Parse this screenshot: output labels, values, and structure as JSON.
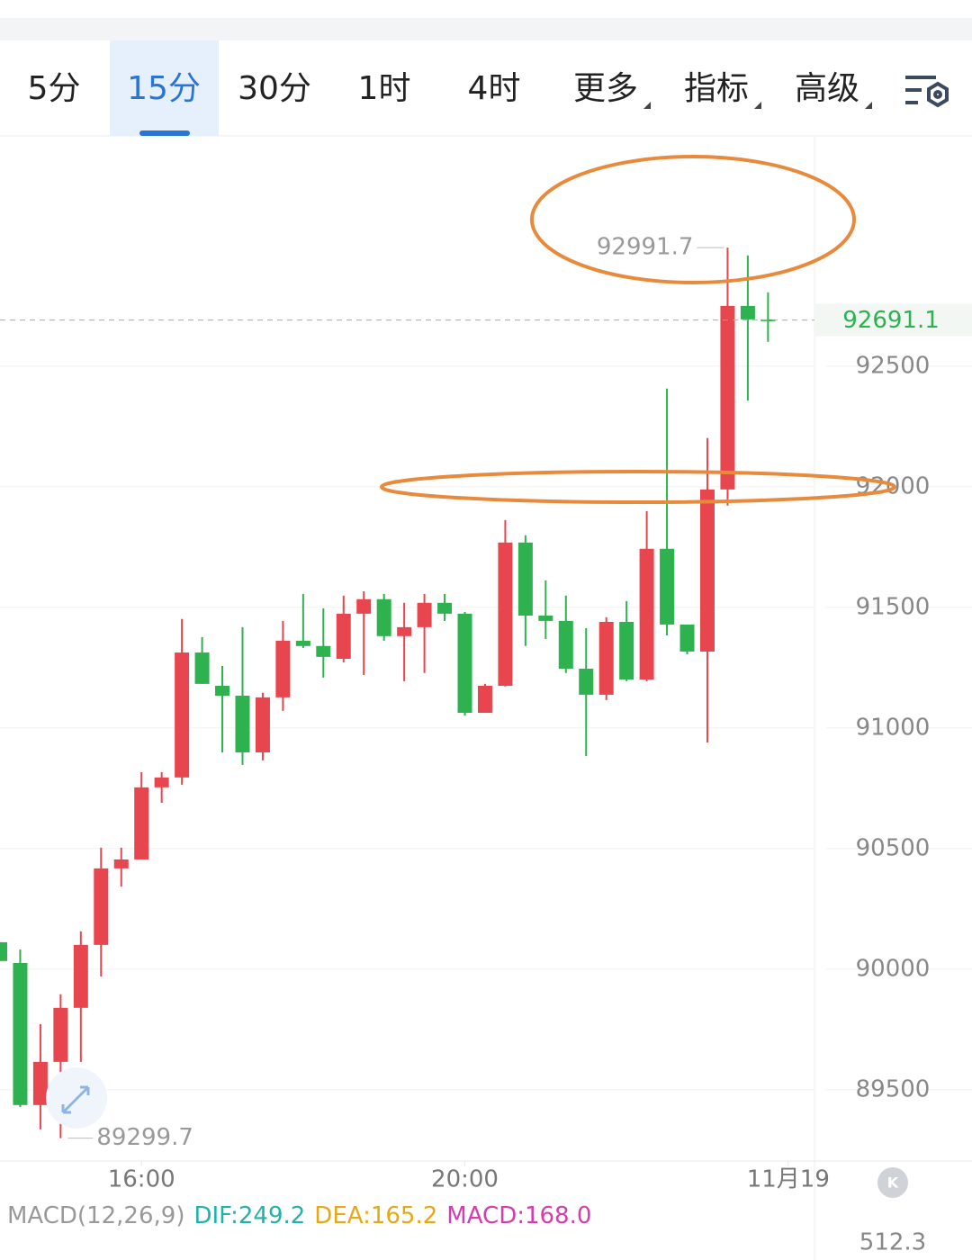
{
  "tabs": [
    "5分",
    "15分",
    "30分",
    "1时",
    "4时",
    "更多",
    "指标",
    "高级"
  ],
  "selected_tab": 1,
  "dropdown_tabs": [
    5,
    6,
    7
  ],
  "chart_data": {
    "type": "candlestick",
    "up_color": "#e8464f",
    "down_color": "#2db24f",
    "ylim": [
      89205,
      93451
    ],
    "yticks": [
      89500,
      90000,
      90500,
      91000,
      91500,
      92000,
      92500
    ],
    "xlim": [
      0,
      40.3
    ],
    "xticks": [
      {
        "value": 7,
        "label": "16:00"
      },
      {
        "value": 23,
        "label": "20:00"
      },
      {
        "value": 39,
        "label": "11月19"
      }
    ],
    "grid": true,
    "ohlc": [
      [
        90112,
        90112,
        90034,
        90034
      ],
      [
        90026,
        90082,
        89429,
        89437
      ],
      [
        89437,
        89772,
        89336,
        89616
      ],
      [
        89616,
        89896,
        89299.7,
        89840
      ],
      [
        89840,
        90157,
        89616,
        90101
      ],
      [
        90101,
        90504,
        89970,
        90418
      ],
      [
        90418,
        90504,
        90343,
        90455
      ],
      [
        90455,
        90817,
        90455,
        90754
      ],
      [
        90754,
        90817,
        90690,
        90795
      ],
      [
        90795,
        91452,
        90765,
        91313
      ],
      [
        91313,
        91377,
        91183,
        91183
      ],
      [
        91175,
        91257,
        90899,
        91134
      ],
      [
        91134,
        91418,
        90847,
        90899
      ],
      [
        90899,
        91146,
        90866,
        91127
      ],
      [
        91127,
        91444,
        91071,
        91362
      ],
      [
        91362,
        91556,
        91332,
        91340
      ],
      [
        91340,
        91496,
        91209,
        91295
      ],
      [
        91287,
        91549,
        91272,
        91474
      ],
      [
        91474,
        91567,
        91220,
        91534
      ],
      [
        91534,
        91556,
        91362,
        91381
      ],
      [
        91381,
        91519,
        91194,
        91418
      ],
      [
        91418,
        91556,
        91228,
        91519
      ],
      [
        91519,
        91556,
        91444,
        91474
      ],
      [
        91474,
        91481,
        91052,
        91063
      ],
      [
        91063,
        91183,
        91063,
        91175
      ],
      [
        91175,
        91862,
        91172,
        91769
      ],
      [
        91769,
        91799,
        91340,
        91466
      ],
      [
        91466,
        91612,
        91369,
        91444
      ],
      [
        91444,
        91549,
        91228,
        91246
      ],
      [
        91246,
        91414,
        90884,
        91138
      ],
      [
        91138,
        91459,
        91116,
        91440
      ],
      [
        91440,
        91526,
        91194,
        91201
      ],
      [
        91201,
        91899,
        91194,
        91743
      ],
      [
        91743,
        92407,
        91384,
        91429
      ],
      [
        91429,
        91429,
        91306,
        91317
      ],
      [
        91317,
        92202,
        90940,
        91989
      ],
      [
        91989,
        92991.7,
        91922,
        92750
      ],
      [
        92750,
        92959,
        92358,
        92694
      ],
      [
        92694,
        92806,
        92601,
        92691.1
      ]
    ],
    "high_mark": 36,
    "low_mark": 3,
    "indicator": {
      "name": "MACD(12,26,9)",
      "items": [
        {
          "text": "DIF:249.2",
          "color": "#22b2a6"
        },
        {
          "text": "DEA:165.2",
          "color": "#e6a817"
        },
        {
          "text": "MACD:168.0",
          "color": "#d63cae"
        }
      ],
      "axis_max": 512.3
    }
  }
}
